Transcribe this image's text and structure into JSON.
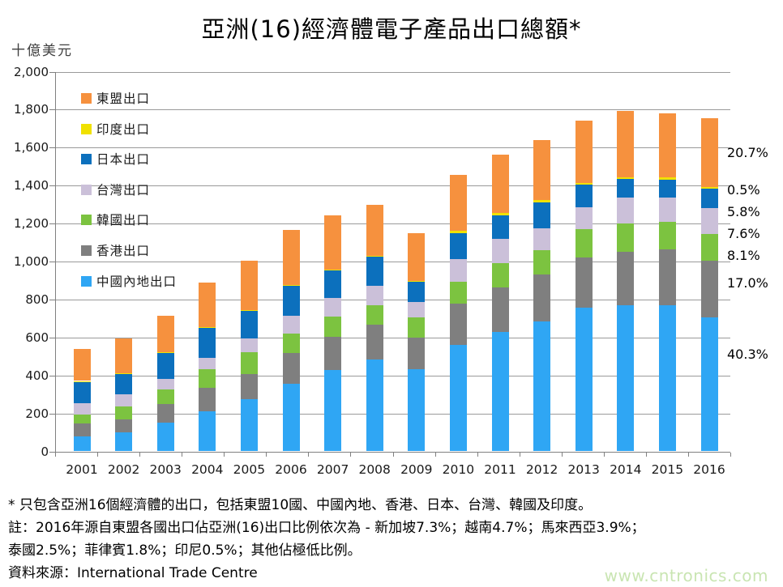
{
  "page": {
    "title": "亞洲(16)經濟體電子產品出口總額*",
    "y_axis_unit_label": "十億美元",
    "watermark": "www.cntronics.com"
  },
  "footnotes": {
    "line1": "* 只包含亞洲16個經濟體的出口，包括東盟10國、中國內地、香港、日本、台灣、韓國及印度。",
    "line2": "註：2016年源自東盟各國出口佔亞洲(16)出口比例依次為 - 新加坡7.3%；越南4.7%；馬來西亞3.9%；",
    "line3": "泰國2.5%；菲律賓1.8%；印尼0.5%；其他佔極低比例。",
    "source": "資料來源：International Trade Centre"
  },
  "chart_data": {
    "type": "bar",
    "stacked": true,
    "title": "亞洲(16)經濟體電子產品出口總額*",
    "unit": "十億美元",
    "categories": [
      "2001",
      "2002",
      "2003",
      "2004",
      "2005",
      "2006",
      "2007",
      "2008",
      "2009",
      "2010",
      "2011",
      "2012",
      "2013",
      "2014",
      "2015",
      "2016"
    ],
    "series": [
      {
        "name": "中國內地出口",
        "color": "#2FA6F4",
        "values": [
          78,
          100,
          151,
          213,
          277,
          356,
          430,
          486,
          433,
          561,
          627,
          684,
          756,
          769,
          769,
          707
        ]
      },
      {
        "name": "香港出口",
        "color": "#7F7F7F",
        "values": [
          68,
          68,
          98,
          121,
          132,
          162,
          174,
          183,
          165,
          216,
          237,
          247,
          264,
          282,
          294,
          298
        ]
      },
      {
        "name": "韓國出口",
        "color": "#7CC340",
        "values": [
          48,
          68,
          79,
          97,
          114,
          104,
          108,
          102,
          109,
          115,
          127,
          128,
          149,
          151,
          146,
          142
        ]
      },
      {
        "name": "台灣出口",
        "color": "#CBC0D9",
        "values": [
          61,
          64,
          53,
          61,
          71,
          92,
          95,
          103,
          81,
          121,
          128,
          115,
          116,
          133,
          126,
          133
        ]
      },
      {
        "name": "日本出口",
        "color": "#0C70BD",
        "values": [
          114,
          108,
          138,
          159,
          149,
          157,
          146,
          150,
          104,
          137,
          126,
          138,
          118,
          100,
          97,
          102
        ]
      },
      {
        "name": "印度出口",
        "color": "#F0E100",
        "values": [
          2,
          4,
          3,
          3,
          3,
          4,
          5,
          6,
          7,
          10,
          10,
          10,
          10,
          10,
          11,
          9
        ]
      },
      {
        "name": "東盟出口",
        "color": "#F6913E",
        "values": [
          168,
          182,
          193,
          236,
          257,
          291,
          285,
          270,
          249,
          295,
          309,
          317,
          331,
          350,
          337,
          363
        ]
      }
    ],
    "legend": {
      "position": "inside-top-left",
      "order_top_to_bottom": [
        "東盟出口",
        "印度出口",
        "日本出口",
        "台灣出口",
        "韓國出口",
        "香港出口",
        "中國內地出口"
      ]
    },
    "ylim": [
      0,
      2000
    ],
    "y_tick_step": 200,
    "y_tick_labels_top_to_bottom": [
      "2,000",
      "1,800",
      "1,600",
      "1,400",
      "1,200",
      "1,000",
      "800",
      "600",
      "400",
      "200",
      "0"
    ],
    "grid": true,
    "share_labels_2016": [
      {
        "series": "東盟出口",
        "text": "20.7%"
      },
      {
        "series": "印度出口",
        "text": "0.5%"
      },
      {
        "series": "日本出口",
        "text": "5.8%"
      },
      {
        "series": "台灣出口",
        "text": "7.6%"
      },
      {
        "series": "韓國出口",
        "text": "8.1%"
      },
      {
        "series": "香港出口",
        "text": "17.0%"
      },
      {
        "series": "中國內地出口",
        "text": "40.3%"
      }
    ]
  }
}
